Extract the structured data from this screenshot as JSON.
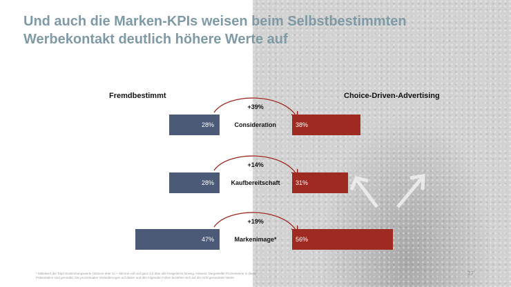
{
  "slide": {
    "title": "Und auch die Marken-KPIs weisen beim Selbstbestimmten Werbekontakt deutlich höhere Werte auf",
    "footnote": "* Mittelwert der Top2-Zustimmungswerte (Stimme eher zu + Stimme voll und ganz zu) über alle Imageitems hinweg. Hinweis: Dargestellte Prozentwerte in dieser Präsentation sind gerundet. Die prozentualen Veränderungen auf dieser und den folgenden Folien beziehen sich auf die nicht gerundeten Werte.",
    "page_number": "27"
  },
  "chart_data": {
    "type": "bar",
    "series": [
      {
        "name": "Fremdbestimmt",
        "values": [
          28,
          28,
          47
        ],
        "labels": [
          "28%",
          "28%",
          "47%"
        ],
        "color": "#4b5a76"
      },
      {
        "name": "Choice-Driven-Advertising",
        "values": [
          38,
          31,
          56
        ],
        "labels": [
          "38%",
          "31%",
          "56%"
        ],
        "color": "#9f2a22"
      }
    ],
    "categories": [
      "Consideration",
      "Kaufbereitschaft",
      "Markenimage*"
    ],
    "changes": [
      "+39%",
      "+14%",
      "+19%"
    ],
    "arrow_color": "#9f2a22"
  }
}
